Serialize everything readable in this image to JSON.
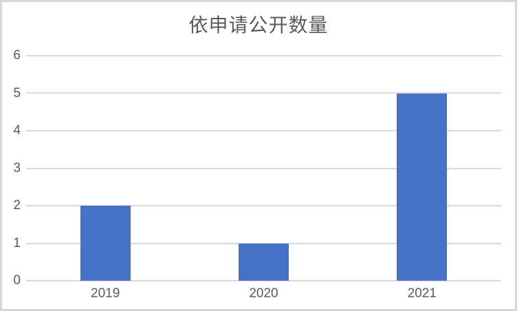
{
  "page": {
    "background_color": "#ffffff",
    "frame_border_color": "#d6d6d6"
  },
  "chart_data": {
    "type": "bar",
    "title": "依申请公开数量",
    "categories": [
      "2019",
      "2020",
      "2021"
    ],
    "values": [
      2,
      1,
      5
    ],
    "xlabel": "",
    "ylabel": "",
    "ylim": [
      0,
      6
    ],
    "ytick_step": 1,
    "ytick_labels": [
      "0",
      "1",
      "2",
      "3",
      "4",
      "5",
      "6"
    ],
    "grid": true,
    "legend": "none",
    "bar_color": "#4472C4",
    "gridline_color": "#d9d9d9",
    "title_color": "#595959",
    "axis_text_color": "#595959"
  }
}
